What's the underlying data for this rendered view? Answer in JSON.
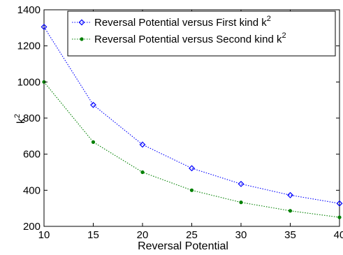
{
  "chart_data": {
    "type": "line",
    "title": "",
    "xlabel": "Reversal Potential",
    "ylabel_base": "k",
    "ylabel_sup": "2",
    "xlim": [
      10,
      40
    ],
    "ylim": [
      200,
      1400
    ],
    "xticks": [
      10,
      15,
      20,
      25,
      30,
      35,
      40
    ],
    "yticks": [
      200,
      400,
      600,
      800,
      1000,
      1200,
      1400
    ],
    "grid": false,
    "legend_position": "top-right",
    "x": [
      10,
      15,
      20,
      25,
      30,
      35,
      40
    ],
    "series": [
      {
        "name": "Reversal Potential versus First kind k",
        "name_sup": "2",
        "values": [
          1305,
          873,
          653,
          522,
          435,
          373,
          327
        ],
        "color": "#0000ff",
        "marker": "diamond"
      },
      {
        "name": "Reversal Potential versus Second kind k",
        "name_sup": "2",
        "values": [
          1000,
          667,
          500,
          400,
          333,
          286,
          250
        ],
        "color": "#008000",
        "marker": "dot"
      }
    ]
  }
}
